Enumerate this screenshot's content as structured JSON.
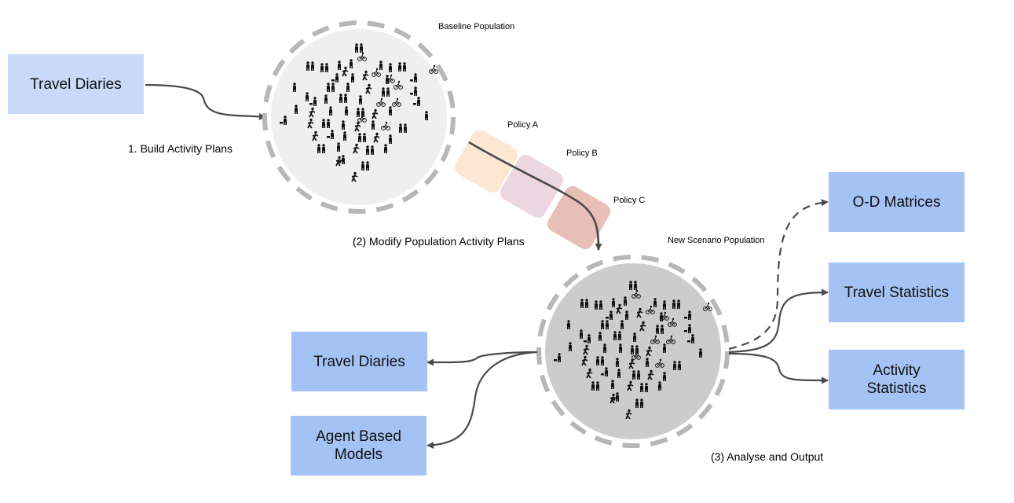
{
  "circles": {
    "baseline": {
      "label": "Baseline Population",
      "fill": "#efefef"
    },
    "scenario": {
      "label": "New Scenario Population",
      "fill": "#cccccc"
    },
    "ring_color": "#b7b7b7"
  },
  "inputs": {
    "travel_diaries": "Travel Diaries"
  },
  "steps": {
    "build": "1. Build Activity Plans",
    "modify": "(2) Modify Population Activity Plans",
    "analyse": "(3) Analyse and Output"
  },
  "policies": [
    {
      "label": "Policy A",
      "color": "#fce5cd"
    },
    {
      "label": "Policy B",
      "color": "#ead1dc"
    },
    {
      "label": "Policy C",
      "color": "#e6b8af"
    }
  ],
  "outputs_left": [
    {
      "label": "Travel Diaries"
    },
    {
      "label": "Agent Based\nModels"
    }
  ],
  "outputs_right": [
    {
      "label": "O-D Matrices",
      "dashed": true
    },
    {
      "label": "Travel Statistics",
      "dashed": false
    },
    {
      "label": "Activity\nStatistics",
      "dashed": false
    }
  ],
  "colors": {
    "arrow": "#4a4a4a",
    "box_light": "#c9daf8",
    "box_mid": "#a4c2f4"
  }
}
